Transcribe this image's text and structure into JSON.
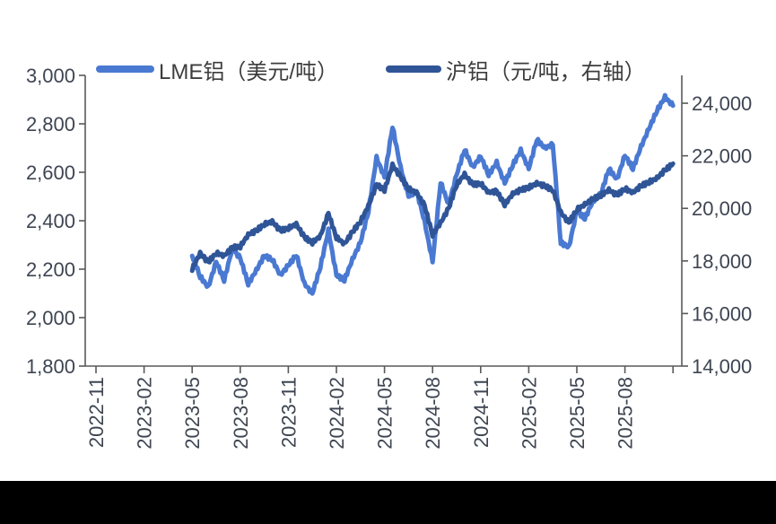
{
  "figure": {
    "background": "#ffffff",
    "bottom_bar_color": "#000000",
    "axis_color": "#595959",
    "tick_label_color": "#3e4552"
  },
  "legend": {
    "items": [
      {
        "label": "LME铝（美元/吨）",
        "color": "#4a79d2"
      },
      {
        "label": "沪铝（元/吨，右轴）",
        "color": "#2f5597"
      }
    ]
  },
  "chart_data": {
    "type": "line",
    "title": "",
    "xlabel": "",
    "ylabel_left": "",
    "ylabel_right": "",
    "grid": false,
    "legend_position": "top",
    "x_axis": {
      "unit": "months since 2022-11",
      "tick_step_months": 3,
      "tick_labels": [
        "2022-11",
        "2023-02",
        "2023-05",
        "2023-08",
        "2023-11",
        "2024-02",
        "2024-05",
        "2024-08",
        "2024-11",
        "2025-02",
        "2025-05",
        "2025-08"
      ],
      "extra_unlabeled_tick_month": 36,
      "data_start": "2023-05",
      "data_end": "2025-11"
    },
    "y_axis_left": {
      "min": 1800,
      "max": 3000,
      "step": 200,
      "tick_labels": [
        "3,000",
        "2,800",
        "2,600",
        "2,400",
        "2,200",
        "2,000",
        "1,800"
      ]
    },
    "y_axis_right": {
      "min": 14000,
      "display_max": 25060,
      "step": 2000,
      "tick_labels": [
        "24,000",
        "22,000",
        "20,000",
        "18,000",
        "16,000",
        "14,000"
      ]
    },
    "series": [
      {
        "name": "LME铝（美元/吨）",
        "axis": "left",
        "color": "#4a79d2",
        "points": [
          [
            6,
            2255
          ],
          [
            6.5,
            2170
          ],
          [
            7,
            2125
          ],
          [
            7.5,
            2230
          ],
          [
            8,
            2155
          ],
          [
            8.5,
            2285
          ],
          [
            9,
            2245
          ],
          [
            9.5,
            2140
          ],
          [
            10,
            2195
          ],
          [
            10.5,
            2255
          ],
          [
            11,
            2240
          ],
          [
            11.5,
            2175
          ],
          [
            12,
            2215
          ],
          [
            12.5,
            2260
          ],
          [
            13,
            2140
          ],
          [
            13.5,
            2100
          ],
          [
            14,
            2210
          ],
          [
            14.5,
            2360
          ],
          [
            15,
            2175
          ],
          [
            15.5,
            2155
          ],
          [
            16,
            2240
          ],
          [
            16.5,
            2310
          ],
          [
            17,
            2440
          ],
          [
            17.5,
            2660
          ],
          [
            18,
            2580
          ],
          [
            18.5,
            2790
          ],
          [
            19,
            2620
          ],
          [
            19.5,
            2500
          ],
          [
            20,
            2525
          ],
          [
            20.5,
            2395
          ],
          [
            21,
            2230
          ],
          [
            21.5,
            2560
          ],
          [
            22,
            2465
          ],
          [
            22.5,
            2590
          ],
          [
            23,
            2695
          ],
          [
            23.5,
            2620
          ],
          [
            24,
            2665
          ],
          [
            24.5,
            2590
          ],
          [
            25,
            2640
          ],
          [
            25.5,
            2555
          ],
          [
            26,
            2630
          ],
          [
            26.5,
            2690
          ],
          [
            27,
            2615
          ],
          [
            27.5,
            2735
          ],
          [
            28,
            2700
          ],
          [
            28.5,
            2715
          ],
          [
            29,
            2310
          ],
          [
            29.5,
            2290
          ],
          [
            30,
            2440
          ],
          [
            30.5,
            2410
          ],
          [
            31,
            2480
          ],
          [
            31.5,
            2510
          ],
          [
            32,
            2615
          ],
          [
            32.5,
            2570
          ],
          [
            33,
            2670
          ],
          [
            33.5,
            2615
          ],
          [
            34,
            2705
          ],
          [
            34.5,
            2780
          ],
          [
            35,
            2855
          ],
          [
            35.5,
            2910
          ],
          [
            36,
            2875
          ]
        ]
      },
      {
        "name": "沪铝（元/吨，右轴）",
        "axis": "right",
        "color": "#2f5597",
        "points": [
          [
            6,
            17700
          ],
          [
            6.5,
            18300
          ],
          [
            7,
            17950
          ],
          [
            7.5,
            18300
          ],
          [
            8,
            18200
          ],
          [
            8.5,
            18500
          ],
          [
            9,
            18550
          ],
          [
            9.5,
            19000
          ],
          [
            10,
            19150
          ],
          [
            10.5,
            19400
          ],
          [
            11,
            19500
          ],
          [
            11.5,
            19150
          ],
          [
            12,
            19250
          ],
          [
            12.5,
            19400
          ],
          [
            13,
            18900
          ],
          [
            13.5,
            18700
          ],
          [
            14,
            18950
          ],
          [
            14.5,
            19800
          ],
          [
            15,
            18900
          ],
          [
            15.5,
            18650
          ],
          [
            16,
            19100
          ],
          [
            16.5,
            19500
          ],
          [
            17,
            20100
          ],
          [
            17.5,
            20900
          ],
          [
            18,
            20700
          ],
          [
            18.5,
            21650
          ],
          [
            19,
            21200
          ],
          [
            19.5,
            20750
          ],
          [
            20,
            20600
          ],
          [
            20.5,
            20100
          ],
          [
            21,
            19000
          ],
          [
            21.5,
            19450
          ],
          [
            22,
            20000
          ],
          [
            22.5,
            20900
          ],
          [
            23,
            21300
          ],
          [
            23.5,
            20900
          ],
          [
            24,
            20950
          ],
          [
            24.5,
            20600
          ],
          [
            25,
            20650
          ],
          [
            25.5,
            20150
          ],
          [
            26,
            20550
          ],
          [
            26.5,
            20700
          ],
          [
            27,
            20800
          ],
          [
            27.5,
            20950
          ],
          [
            28,
            20850
          ],
          [
            28.5,
            20700
          ],
          [
            29,
            19850
          ],
          [
            29.5,
            19450
          ],
          [
            30,
            19950
          ],
          [
            30.5,
            20150
          ],
          [
            31,
            20350
          ],
          [
            31.5,
            20500
          ],
          [
            32,
            20700
          ],
          [
            32.5,
            20500
          ],
          [
            33,
            20750
          ],
          [
            33.5,
            20600
          ],
          [
            34,
            20850
          ],
          [
            34.5,
            21000
          ],
          [
            35,
            21150
          ],
          [
            35.5,
            21450
          ],
          [
            36,
            21700
          ]
        ]
      }
    ]
  }
}
